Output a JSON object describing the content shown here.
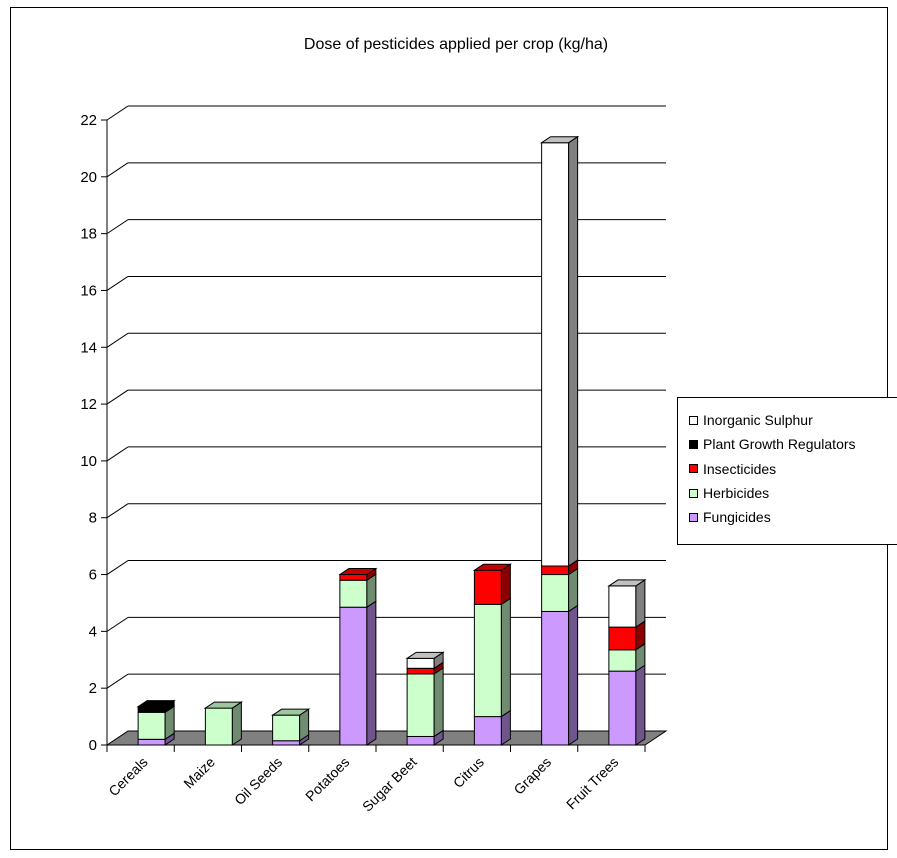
{
  "chart_data": {
    "type": "bar",
    "stacked": true,
    "title": "Dose of pesticides applied per crop (kg/ha)",
    "xlabel": "",
    "ylabel": "",
    "ylim": [
      0,
      22
    ],
    "yticks": [
      0,
      2,
      4,
      6,
      8,
      10,
      12,
      14,
      16,
      18,
      20,
      22
    ],
    "grid": true,
    "legend_position": "right",
    "categories": [
      "Cereals",
      "Maize",
      "Oil Seeds",
      "Potatoes",
      "Sugar Beet",
      "Citrus",
      "Grapes",
      "Fruit Trees"
    ],
    "series": [
      {
        "name": "Fungicides",
        "color": "#cc99ff",
        "values": [
          0.2,
          0.0,
          0.15,
          4.85,
          0.3,
          1.0,
          4.7,
          2.6
        ]
      },
      {
        "name": "Herbicides",
        "color": "#ccffcc",
        "values": [
          0.95,
          1.3,
          0.9,
          0.95,
          2.2,
          3.95,
          1.3,
          0.75
        ]
      },
      {
        "name": "Insecticides",
        "color": "#ff0000",
        "values": [
          0.0,
          0.0,
          0.0,
          0.2,
          0.2,
          1.2,
          0.3,
          0.8
        ]
      },
      {
        "name": "Plant Growth Regulators",
        "color": "#000000",
        "values": [
          0.2,
          0.0,
          0.0,
          0.0,
          0.0,
          0.0,
          0.0,
          0.0
        ]
      },
      {
        "name": "Inorganic Sulphur",
        "color": "#ffffff",
        "values": [
          0.0,
          0.0,
          0.0,
          0.0,
          0.35,
          0.0,
          14.9,
          1.45
        ]
      }
    ],
    "legend_order": [
      "Inorganic Sulphur",
      "Plant Growth Regulators",
      "Insecticides",
      "Herbicides",
      "Fungicides"
    ],
    "floor_color": "#808080"
  }
}
